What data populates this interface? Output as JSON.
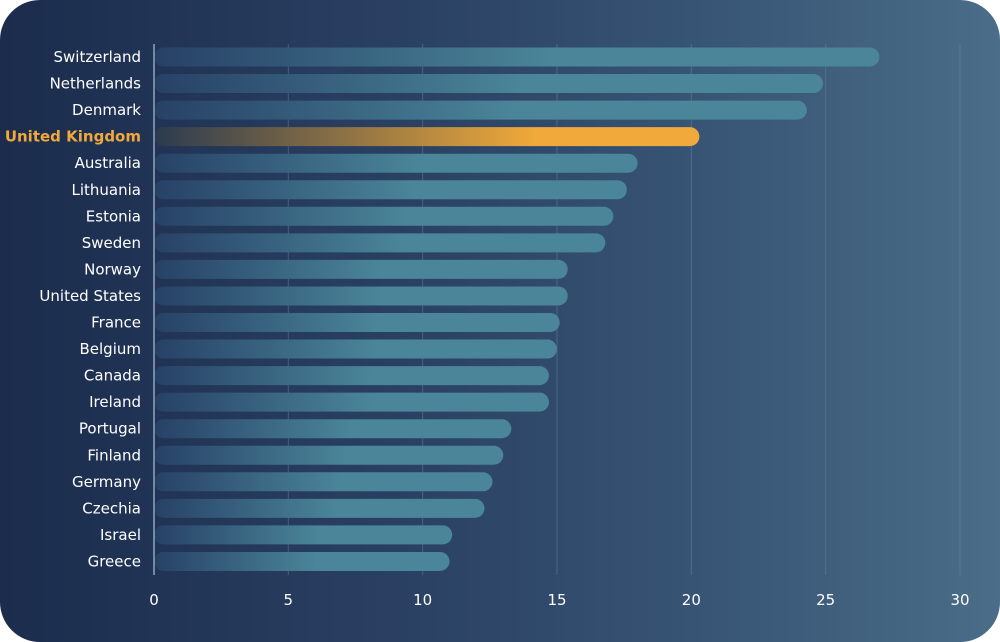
{
  "chart_data": {
    "type": "bar",
    "orientation": "horizontal",
    "categories": [
      "Switzerland",
      "Netherlands",
      "Denmark",
      "United Kingdom",
      "Australia",
      "Lithuania",
      "Estonia",
      "Sweden",
      "Norway",
      "United States",
      "France",
      "Belgium",
      "Canada",
      "Ireland",
      "Portugal",
      "Finland",
      "Germany",
      "Czechia",
      "Israel",
      "Greece"
    ],
    "values": [
      27.0,
      24.9,
      24.3,
      20.3,
      18.0,
      17.6,
      17.1,
      16.8,
      15.4,
      15.4,
      15.1,
      15.0,
      14.7,
      14.7,
      13.3,
      13.0,
      12.6,
      12.3,
      11.1,
      11.0
    ],
    "highlight": "United Kingdom",
    "xlim": [
      0,
      30
    ],
    "xticks": [
      0,
      5,
      10,
      15,
      20,
      25,
      30
    ],
    "grid": true,
    "title": "",
    "xlabel": "",
    "ylabel": "",
    "colors": {
      "bar": "#4a8599",
      "bar_fade": "#274166",
      "highlight": "#f0a93a",
      "highlight_fade": "#2b3a4f",
      "label": "#ffffff",
      "highlight_label": "#f0a93a",
      "grid": "#6d88a3",
      "axis": "#8ea6bd"
    }
  }
}
